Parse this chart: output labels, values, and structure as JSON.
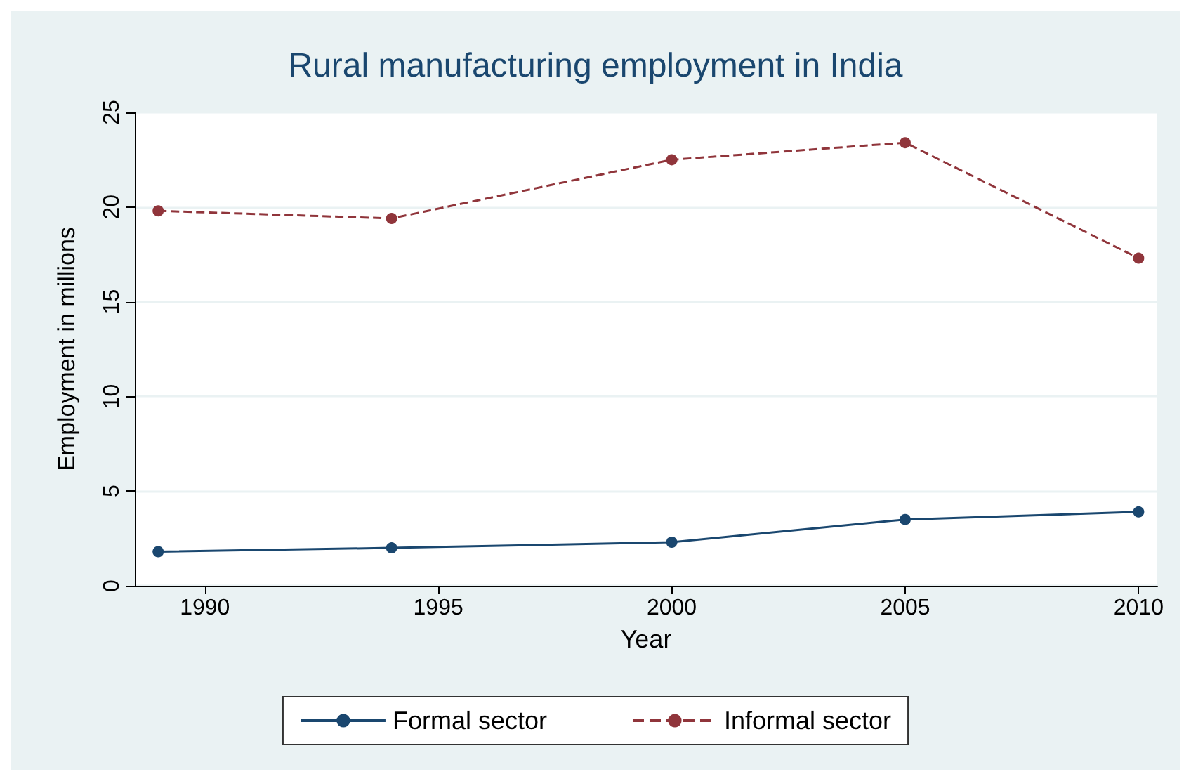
{
  "chart_data": {
    "type": "line",
    "title": "Rural manufacturing employment in India",
    "xlabel": "Year",
    "ylabel": "Employment in millions",
    "xlim": [
      1988.5,
      2010.4
    ],
    "xticks": [
      1990,
      1995,
      2000,
      2005,
      2010
    ],
    "ylim": [
      0,
      25
    ],
    "yticks": [
      0,
      5,
      10,
      15,
      20,
      25
    ],
    "series": [
      {
        "name": "Formal sector",
        "color": "#1a476f",
        "x": [
          1989,
          1994,
          2000,
          2005,
          2010
        ],
        "values": [
          1.8,
          2.0,
          2.3,
          3.5,
          3.9
        ],
        "line_style": "solid"
      },
      {
        "name": "Informal sector",
        "color": "#90353b",
        "x": [
          1989,
          1994,
          2000,
          2005,
          2010
        ],
        "values": [
          19.8,
          19.4,
          22.5,
          23.4,
          17.3
        ],
        "line_style": "dashed"
      }
    ],
    "marker": "circle",
    "grid": "y",
    "legend": "bottom"
  }
}
